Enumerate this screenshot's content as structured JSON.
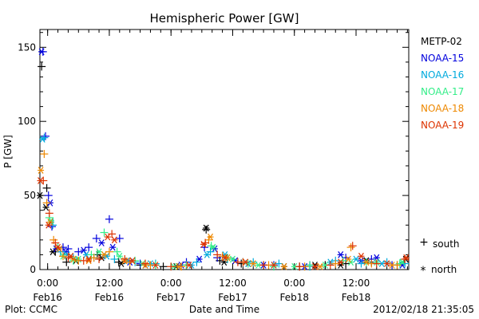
{
  "chart_data": {
    "type": "scatter",
    "title": "Hemispheric Power [GW]",
    "xlabel": "Date and Time",
    "ylabel": "P [GW]",
    "ylim": [
      0,
      162
    ],
    "xlim": [
      "2012-02-15T22:30",
      "2012-02-18T22:15"
    ],
    "y_ticks": [
      "0",
      "50",
      "100",
      "150"
    ],
    "x_ticks": [
      {
        "time": "0:00",
        "date": "Feb16",
        "at": "2012-02-16T00:00"
      },
      {
        "time": "12:00",
        "date": "Feb16",
        "at": "2012-02-16T12:00"
      },
      {
        "time": "0:00",
        "date": "Feb17",
        "at": "2012-02-17T00:00"
      },
      {
        "time": "12:00",
        "date": "Feb17",
        "at": "2012-02-17T12:00"
      },
      {
        "time": "0:00",
        "date": "Feb18",
        "at": "2012-02-18T00:00"
      },
      {
        "time": "12:00",
        "date": "Feb18",
        "at": "2012-02-18T12:00"
      }
    ],
    "legend_position": "right",
    "marker_legend": {
      "south_symbol": "+",
      "south_label": "south",
      "north_symbol": "*",
      "north_label": "north"
    },
    "series": [
      {
        "name": "METP-02",
        "color": "#000000",
        "south": [
          [
            "2012-02-15T22:50",
            137
          ],
          [
            "2012-02-15T23:50",
            55
          ],
          [
            "2012-02-16T01:30",
            12
          ],
          [
            "2012-02-16T03:40",
            5
          ],
          [
            "2012-02-16T09:40",
            10
          ],
          [
            "2012-02-16T13:50",
            5
          ],
          [
            "2012-02-16T18:00",
            3
          ],
          [
            "2012-02-16T22:30",
            2
          ],
          [
            "2012-02-17T03:00",
            3
          ],
          [
            "2012-02-17T06:50",
            27
          ],
          [
            "2012-02-17T09:30",
            6
          ],
          [
            "2012-02-17T13:40",
            4
          ],
          [
            "2012-02-17T18:00",
            3
          ],
          [
            "2012-02-18T01:00",
            2
          ],
          [
            "2012-02-18T06:00",
            3
          ],
          [
            "2012-02-18T10:00",
            4
          ],
          [
            "2012-02-18T15:00",
            5
          ],
          [
            "2012-02-18T20:00",
            3
          ]
        ],
        "north": [
          [
            "2012-02-15T22:30",
            50
          ],
          [
            "2012-02-15T23:40",
            42
          ],
          [
            "2012-02-16T01:00",
            12
          ],
          [
            "2012-02-16T05:30",
            6
          ],
          [
            "2012-02-16T10:30",
            8
          ],
          [
            "2012-02-16T14:20",
            4
          ],
          [
            "2012-02-16T19:00",
            3
          ],
          [
            "2012-02-17T01:00",
            2
          ],
          [
            "2012-02-17T06:50",
            28
          ],
          [
            "2012-02-17T10:20",
            5
          ],
          [
            "2012-02-17T15:00",
            4
          ],
          [
            "2012-02-17T22:00",
            2
          ],
          [
            "2012-02-18T04:00",
            3
          ],
          [
            "2012-02-18T09:00",
            3
          ],
          [
            "2012-02-18T14:00",
            6
          ],
          [
            "2012-02-18T21:40",
            7
          ]
        ]
      },
      {
        "name": "NOAA-15",
        "color": "#0000dd",
        "south": [
          [
            "2012-02-15T23:05",
            147
          ],
          [
            "2012-02-15T23:35",
            90
          ],
          [
            "2012-02-16T00:10",
            50
          ],
          [
            "2012-02-16T00:50",
            29
          ],
          [
            "2012-02-16T03:00",
            15
          ],
          [
            "2012-02-16T04:00",
            14
          ],
          [
            "2012-02-16T06:00",
            12
          ],
          [
            "2012-02-16T08:00",
            15
          ],
          [
            "2012-02-16T09:30",
            21
          ],
          [
            "2012-02-16T12:00",
            34
          ],
          [
            "2012-02-16T14:00",
            21
          ],
          [
            "2012-02-16T18:00",
            4
          ],
          [
            "2012-02-17T03:00",
            5
          ],
          [
            "2012-02-17T06:30",
            15
          ],
          [
            "2012-02-17T09:00",
            8
          ],
          [
            "2012-02-17T14:00",
            5
          ],
          [
            "2012-02-17T20:00",
            3
          ],
          [
            "2012-02-18T03:00",
            3
          ],
          [
            "2012-02-18T10:00",
            8
          ],
          [
            "2012-02-18T15:00",
            7
          ],
          [
            "2012-02-18T19:00",
            3
          ]
        ],
        "north": [
          [
            "2012-02-15T22:50",
            147
          ],
          [
            "2012-02-16T00:30",
            45
          ],
          [
            "2012-02-16T01:40",
            14
          ],
          [
            "2012-02-16T03:30",
            12
          ],
          [
            "2012-02-16T07:00",
            13
          ],
          [
            "2012-02-16T10:30",
            18
          ],
          [
            "2012-02-16T12:40",
            15
          ],
          [
            "2012-02-16T16:00",
            5
          ],
          [
            "2012-02-17T02:00",
            3
          ],
          [
            "2012-02-17T05:30",
            7
          ],
          [
            "2012-02-17T08:30",
            14
          ],
          [
            "2012-02-17T12:30",
            6
          ],
          [
            "2012-02-17T18:00",
            3
          ],
          [
            "2012-02-18T02:00",
            2
          ],
          [
            "2012-02-18T09:00",
            10
          ],
          [
            "2012-02-18T13:00",
            6
          ],
          [
            "2012-02-18T16:00",
            8
          ],
          [
            "2012-02-18T21:00",
            3
          ]
        ]
      },
      {
        "name": "NOAA-16",
        "color": "#00aadd",
        "south": [
          [
            "2012-02-15T23:20",
            89
          ],
          [
            "2012-02-16T01:00",
            30
          ],
          [
            "2012-02-16T02:30",
            12
          ],
          [
            "2012-02-16T05:00",
            8
          ],
          [
            "2012-02-16T09:00",
            8
          ],
          [
            "2012-02-16T13:00",
            7
          ],
          [
            "2012-02-16T17:00",
            5
          ],
          [
            "2012-02-16T21:00",
            4
          ],
          [
            "2012-02-17T05:00",
            5
          ],
          [
            "2012-02-17T07:40",
            12
          ],
          [
            "2012-02-17T11:00",
            7
          ],
          [
            "2012-02-17T16:00",
            5
          ],
          [
            "2012-02-17T21:00",
            4
          ],
          [
            "2012-02-18T03:00",
            2
          ],
          [
            "2012-02-18T08:00",
            6
          ],
          [
            "2012-02-18T13:00",
            4
          ],
          [
            "2012-02-18T18:00",
            5
          ],
          [
            "2012-02-18T21:30",
            4
          ]
        ],
        "north": [
          [
            "2012-02-15T23:00",
            88
          ],
          [
            "2012-02-16T00:40",
            32
          ],
          [
            "2012-02-16T03:50",
            10
          ],
          [
            "2012-02-16T07:30",
            10
          ],
          [
            "2012-02-16T11:30",
            9
          ],
          [
            "2012-02-16T15:30",
            6
          ],
          [
            "2012-02-16T20:00",
            4
          ],
          [
            "2012-02-17T04:00",
            3
          ],
          [
            "2012-02-17T07:00",
            10
          ],
          [
            "2012-02-17T10:30",
            10
          ],
          [
            "2012-02-17T15:00",
            4
          ],
          [
            "2012-02-17T20:00",
            3
          ],
          [
            "2012-02-18T07:00",
            5
          ],
          [
            "2012-02-18T12:00",
            7
          ],
          [
            "2012-02-18T17:00",
            4
          ],
          [
            "2012-02-18T21:00",
            5
          ]
        ]
      },
      {
        "name": "NOAA-17",
        "color": "#33ee88",
        "south": [
          [
            "2012-02-16T00:20",
            35
          ],
          [
            "2012-02-16T02:00",
            15
          ],
          [
            "2012-02-16T05:00",
            6
          ],
          [
            "2012-02-16T08:30",
            10
          ],
          [
            "2012-02-16T11:00",
            25
          ],
          [
            "2012-02-16T13:30",
            12
          ],
          [
            "2012-02-16T17:00",
            6
          ],
          [
            "2012-02-16T21:00",
            3
          ],
          [
            "2012-02-17T03:00",
            3
          ],
          [
            "2012-02-17T07:50",
            16
          ],
          [
            "2012-02-17T11:00",
            8
          ],
          [
            "2012-02-17T15:00",
            4
          ],
          [
            "2012-02-17T20:00",
            2
          ],
          [
            "2012-02-18T03:00",
            3
          ],
          [
            "2012-02-18T09:30",
            6
          ],
          [
            "2012-02-18T14:00",
            5
          ],
          [
            "2012-02-18T20:30",
            4
          ]
        ],
        "north": [
          [
            "2012-02-16T00:40",
            33
          ],
          [
            "2012-02-16T03:00",
            9
          ],
          [
            "2012-02-16T06:00",
            7
          ],
          [
            "2012-02-16T10:00",
            12
          ],
          [
            "2012-02-16T14:00",
            9
          ],
          [
            "2012-02-16T18:30",
            4
          ],
          [
            "2012-02-17T00:30",
            2
          ],
          [
            "2012-02-17T08:10",
            15
          ],
          [
            "2012-02-17T12:00",
            7
          ],
          [
            "2012-02-17T17:00",
            3
          ],
          [
            "2012-02-18T00:00",
            2
          ],
          [
            "2012-02-18T06:00",
            3
          ],
          [
            "2012-02-18T11:00",
            5
          ],
          [
            "2012-02-18T16:00",
            5
          ],
          [
            "2012-02-18T21:00",
            5
          ]
        ]
      },
      {
        "name": "NOAA-18",
        "color": "#ee8800",
        "south": [
          [
            "2012-02-15T23:20",
            78
          ],
          [
            "2012-02-15T23:50",
            45
          ],
          [
            "2012-02-16T01:10",
            20
          ],
          [
            "2012-02-16T03:00",
            9
          ],
          [
            "2012-02-16T06:00",
            6
          ],
          [
            "2012-02-16T09:00",
            8
          ],
          [
            "2012-02-16T12:00",
            12
          ],
          [
            "2012-02-16T16:00",
            5
          ],
          [
            "2012-02-16T20:00",
            3
          ],
          [
            "2012-02-17T02:00",
            2
          ],
          [
            "2012-02-17T07:20",
            20
          ],
          [
            "2012-02-17T10:00",
            9
          ],
          [
            "2012-02-17T14:00",
            5
          ],
          [
            "2012-02-17T19:00",
            3
          ],
          [
            "2012-02-18T02:00",
            2
          ],
          [
            "2012-02-18T08:00",
            4
          ],
          [
            "2012-02-18T11:00",
            15
          ],
          [
            "2012-02-18T15:00",
            4
          ],
          [
            "2012-02-18T20:00",
            3
          ]
        ],
        "north": [
          [
            "2012-02-15T22:40",
            67
          ],
          [
            "2012-02-16T00:30",
            32
          ],
          [
            "2012-02-16T02:20",
            14
          ],
          [
            "2012-02-16T05:00",
            7
          ],
          [
            "2012-02-16T08:00",
            6
          ],
          [
            "2012-02-16T11:00",
            10
          ],
          [
            "2012-02-16T15:00",
            6
          ],
          [
            "2012-02-16T19:00",
            3
          ],
          [
            "2012-02-17T01:30",
            2
          ],
          [
            "2012-02-17T07:40",
            22
          ],
          [
            "2012-02-17T11:00",
            8
          ],
          [
            "2012-02-17T16:00",
            4
          ],
          [
            "2012-02-17T22:00",
            2
          ],
          [
            "2012-02-18T05:00",
            2
          ],
          [
            "2012-02-18T10:30",
            7
          ],
          [
            "2012-02-18T14:00",
            5
          ],
          [
            "2012-02-18T19:00",
            3
          ]
        ]
      },
      {
        "name": "NOAA-19",
        "color": "#dd3300",
        "south": [
          [
            "2012-02-15T23:10",
            60
          ],
          [
            "2012-02-16T00:20",
            38
          ],
          [
            "2012-02-16T01:30",
            18
          ],
          [
            "2012-02-16T04:00",
            8
          ],
          [
            "2012-02-16T07:00",
            6
          ],
          [
            "2012-02-16T10:00",
            7
          ],
          [
            "2012-02-16T12:30",
            24
          ],
          [
            "2012-02-16T15:00",
            7
          ],
          [
            "2012-02-16T19:00",
            4
          ],
          [
            "2012-02-17T00:00",
            2
          ],
          [
            "2012-02-17T06:40",
            18
          ],
          [
            "2012-02-17T09:00",
            10
          ],
          [
            "2012-02-17T13:00",
            5
          ],
          [
            "2012-02-17T18:00",
            3
          ],
          [
            "2012-02-18T01:00",
            2
          ],
          [
            "2012-02-18T07:00",
            3
          ],
          [
            "2012-02-18T11:20",
            16
          ],
          [
            "2012-02-18T16:00",
            4
          ],
          [
            "2012-02-18T21:30",
            7
          ]
        ],
        "north": [
          [
            "2012-02-15T22:35",
            60
          ],
          [
            "2012-02-16T00:10",
            30
          ],
          [
            "2012-02-16T02:00",
            15
          ],
          [
            "2012-02-16T04:30",
            9
          ],
          [
            "2012-02-16T08:00",
            7
          ],
          [
            "2012-02-16T11:40",
            22
          ],
          [
            "2012-02-16T13:00",
            20
          ],
          [
            "2012-02-16T16:30",
            6
          ],
          [
            "2012-02-16T21:00",
            3
          ],
          [
            "2012-02-17T03:30",
            3
          ],
          [
            "2012-02-17T06:20",
            17
          ],
          [
            "2012-02-17T10:30",
            8
          ],
          [
            "2012-02-17T14:30",
            5
          ],
          [
            "2012-02-17T20:00",
            3
          ],
          [
            "2012-02-18T04:00",
            2
          ],
          [
            "2012-02-18T09:00",
            5
          ],
          [
            "2012-02-18T13:00",
            9
          ],
          [
            "2012-02-18T18:00",
            4
          ],
          [
            "2012-02-18T21:45",
            8
          ]
        ]
      }
    ]
  },
  "footer": {
    "plot_source": "Plot: CCMC",
    "timestamp": "2012/02/18 21:35:05"
  }
}
